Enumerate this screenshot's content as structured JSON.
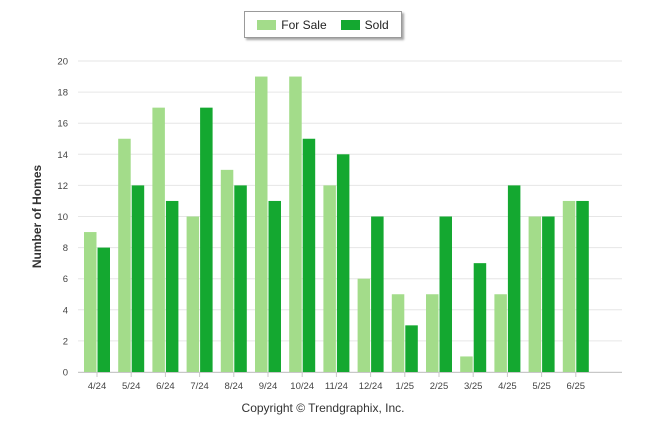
{
  "legend": {
    "series_1": "For Sale",
    "series_2": "Sold"
  },
  "copyright": "Copyright © Trendgraphix, Inc.",
  "chart_data": {
    "type": "bar",
    "ylabel": "Number of Homes",
    "xlabel": "",
    "ylim": [
      0,
      20
    ],
    "yticks": [
      0,
      2,
      4,
      6,
      8,
      10,
      12,
      14,
      16,
      18,
      20
    ],
    "grid": true,
    "legend_position": "top-center",
    "categories": [
      "4/24",
      "5/24",
      "6/24",
      "7/24",
      "8/24",
      "9/24",
      "10/24",
      "11/24",
      "12/24",
      "1/25",
      "2/25",
      "3/25",
      "4/25",
      "5/25",
      "6/25"
    ],
    "series": [
      {
        "name": "For Sale",
        "color": "#a3dc8a",
        "values": [
          9,
          15,
          17,
          10,
          13,
          19,
          19,
          12,
          6,
          5,
          5,
          1,
          5,
          10,
          11
        ]
      },
      {
        "name": "Sold",
        "color": "#14a830",
        "values": [
          8,
          12,
          11,
          17,
          12,
          11,
          15,
          14,
          10,
          3,
          10,
          7,
          12,
          10,
          11
        ]
      }
    ]
  }
}
